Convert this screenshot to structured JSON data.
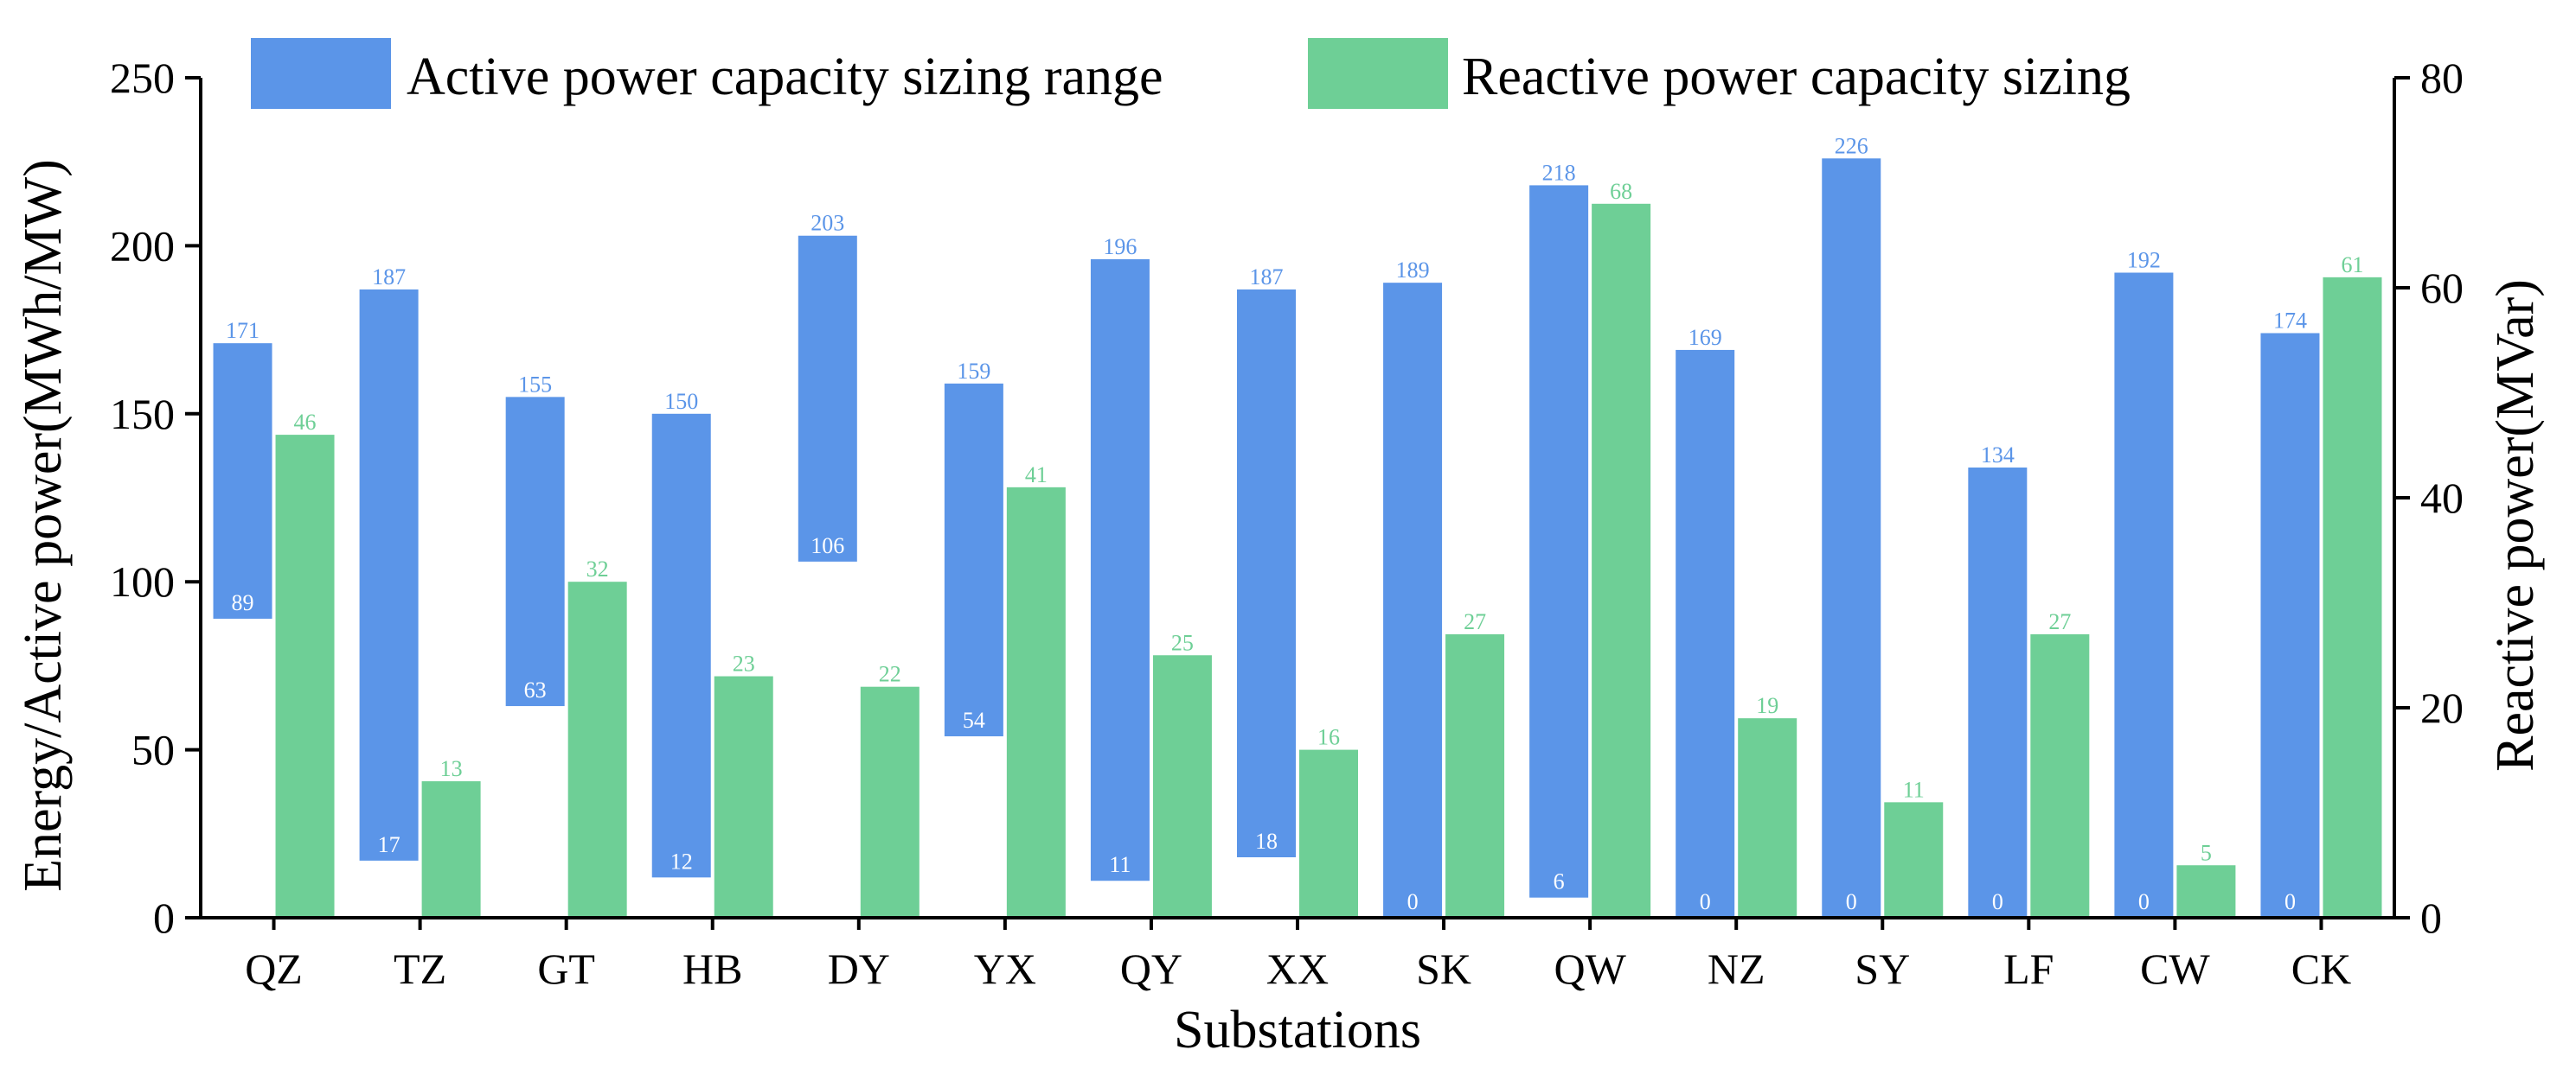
{
  "chart_data": {
    "type": "bar",
    "xlabel": "Substations",
    "ylabel_left": "Energy/Active power(MWh/MW)",
    "ylabel_right": "Reactive power(MVar)",
    "ylim_left": [
      0,
      250
    ],
    "yticks_left": [
      0,
      50,
      100,
      150,
      200,
      250
    ],
    "ylim_right": [
      0,
      80
    ],
    "yticks_right": [
      0,
      20,
      40,
      60,
      80
    ],
    "grid": false,
    "legend_position": "top",
    "categories": [
      "QZ",
      "TZ",
      "GT",
      "HB",
      "DY",
      "YX",
      "QY",
      "XX",
      "SK",
      "QW",
      "NZ",
      "SY",
      "LF",
      "CW",
      "CK"
    ],
    "series": [
      {
        "name": "Active power capacity sizing range",
        "kind": "floating-range",
        "axis": "left",
        "color": "#5b95e8",
        "low": [
          89,
          17,
          63,
          12,
          106,
          54,
          11,
          18,
          0,
          6,
          0,
          0,
          0,
          0,
          0
        ],
        "high": [
          171,
          187,
          155,
          150,
          203,
          159,
          196,
          187,
          189,
          218,
          169,
          226,
          134,
          192,
          174
        ]
      },
      {
        "name": "Reactive power capacity sizing",
        "kind": "bar",
        "axis": "right",
        "color": "#6ecf96",
        "values": [
          46,
          13,
          32,
          23,
          22,
          41,
          25,
          16,
          27,
          68,
          19,
          11,
          27,
          5,
          61
        ]
      }
    ]
  }
}
